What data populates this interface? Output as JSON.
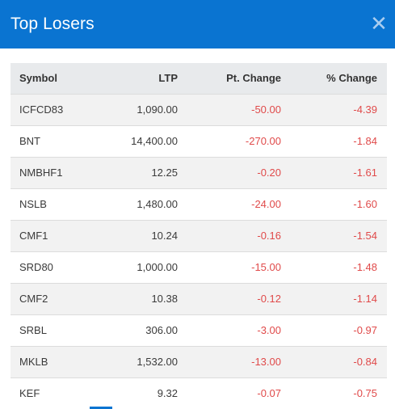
{
  "modal": {
    "title": "Top Losers",
    "close_glyph": "✕",
    "close_icon": "close-icon"
  },
  "table": {
    "headers": {
      "symbol": "Symbol",
      "ltp": "LTP",
      "pt_change": "Pt. Change",
      "pct_change": "% Change"
    },
    "rows": [
      {
        "symbol": "ICFCD83",
        "ltp": "1,090.00",
        "pt_change": "-50.00",
        "pct_change": "-4.39"
      },
      {
        "symbol": "BNT",
        "ltp": "14,400.00",
        "pt_change": "-270.00",
        "pct_change": "-1.84"
      },
      {
        "symbol": "NMBHF1",
        "ltp": "12.25",
        "pt_change": "-0.20",
        "pct_change": "-1.61"
      },
      {
        "symbol": "NSLB",
        "ltp": "1,480.00",
        "pt_change": "-24.00",
        "pct_change": "-1.60"
      },
      {
        "symbol": "CMF1",
        "ltp": "10.24",
        "pt_change": "-0.16",
        "pct_change": "-1.54"
      },
      {
        "symbol": "SRD80",
        "ltp": "1,000.00",
        "pt_change": "-15.00",
        "pct_change": "-1.48"
      },
      {
        "symbol": "CMF2",
        "ltp": "10.38",
        "pt_change": "-0.12",
        "pct_change": "-1.14"
      },
      {
        "symbol": "SRBL",
        "ltp": "306.00",
        "pt_change": "-3.00",
        "pct_change": "-0.97"
      },
      {
        "symbol": "MKLB",
        "ltp": "1,532.00",
        "pt_change": "-13.00",
        "pct_change": "-0.84"
      },
      {
        "symbol": "KEF",
        "ltp": "9.32",
        "pt_change": "-0.07",
        "pct_change": "-0.75"
      }
    ]
  },
  "colors": {
    "header_bg": "#0a74d1",
    "negative": "#e04a4a",
    "table_header_bg": "#e8eaec",
    "stripe": "#f2f2f2"
  }
}
